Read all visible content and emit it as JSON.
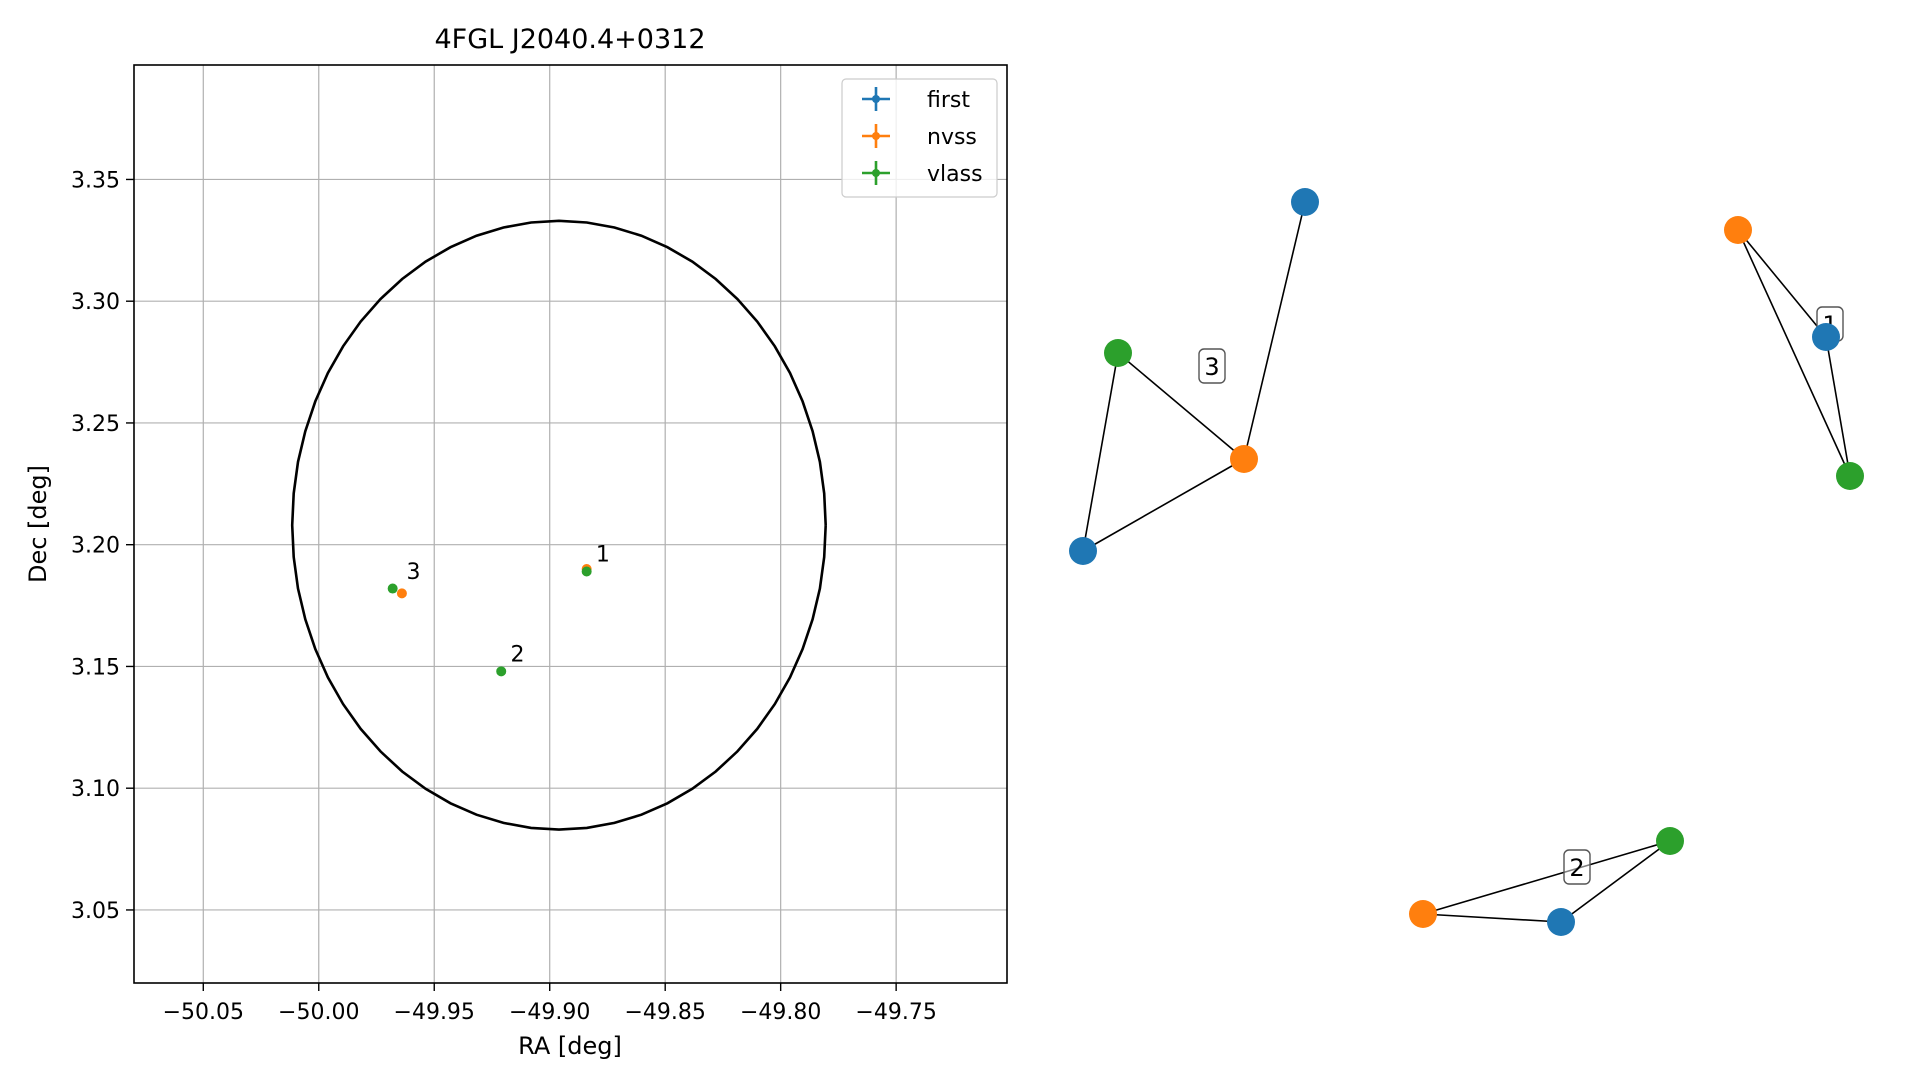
{
  "chart_data": [
    {
      "type": "scatter",
      "title": "4FGL J2040.4+0312",
      "xlabel": "RA [deg]",
      "ylabel": "Dec [deg]",
      "xlim": [
        -50.08,
        -49.702
      ],
      "ylim": [
        3.02,
        3.397
      ],
      "xticks": [
        -50.05,
        -50.0,
        -49.95,
        -49.9,
        -49.85,
        -49.8,
        -49.75
      ],
      "xtick_labels": [
        "−50.05",
        "−50.00",
        "−49.95",
        "−49.90",
        "−49.85",
        "−49.80",
        "−49.75"
      ],
      "yticks": [
        3.05,
        3.1,
        3.15,
        3.2,
        3.25,
        3.3,
        3.35
      ],
      "ytick_labels": [
        "3.05",
        "3.10",
        "3.15",
        "3.20",
        "3.25",
        "3.30",
        "3.35"
      ],
      "grid": true,
      "legend_position": "top-right",
      "series": [
        {
          "name": "first",
          "color": "#1f77b4",
          "points": []
        },
        {
          "name": "nvss",
          "color": "#ff7f0e",
          "points": [
            {
              "x": -49.884,
              "y": 3.19
            },
            {
              "x": -49.964,
              "y": 3.18
            }
          ]
        },
        {
          "name": "vlass",
          "color": "#2ca02c",
          "points": [
            {
              "x": -49.884,
              "y": 3.189
            },
            {
              "x": -49.921,
              "y": 3.148
            },
            {
              "x": -49.968,
              "y": 3.182
            }
          ]
        }
      ],
      "ellipse": {
        "center_x": -49.896,
        "center_y": 3.208,
        "half_width_x": 0.1155,
        "half_height_y": 0.125,
        "color": "#000000"
      },
      "annotations": [
        {
          "text": "1",
          "x": -49.88,
          "y": 3.193
        },
        {
          "text": "2",
          "x": -49.917,
          "y": 3.152
        },
        {
          "text": "3",
          "x": -49.962,
          "y": 3.186
        }
      ]
    },
    {
      "type": "network",
      "colors": {
        "first": "#1f77b4",
        "nvss": "#ff7f0e",
        "vlass": "#2ca02c"
      },
      "clusters": [
        {
          "label": "1",
          "nodes": [
            "first",
            "nvss",
            "vlass"
          ]
        },
        {
          "label": "2",
          "nodes": [
            "first",
            "nvss",
            "vlass"
          ]
        },
        {
          "label": "3",
          "nodes": [
            "first",
            "nvss",
            "vlass"
          ]
        }
      ]
    }
  ]
}
